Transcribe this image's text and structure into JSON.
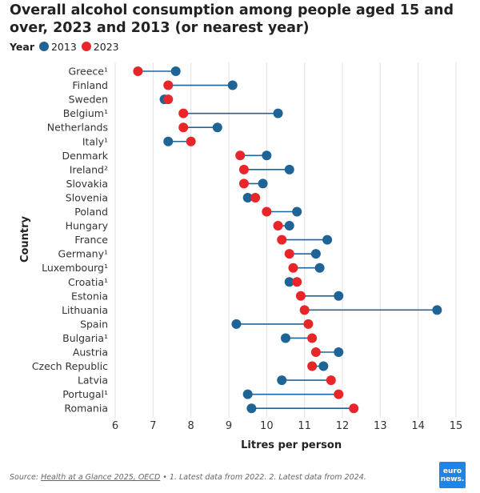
{
  "title": "Overall alcohol consumption among people aged 15 and over, 2023 and 2013 (or nearest year)",
  "legend": {
    "title": "Year",
    "items": [
      {
        "label": "2013",
        "color": "#1f6497"
      },
      {
        "label": "2023",
        "color": "#e8262a"
      }
    ]
  },
  "chart_data": {
    "type": "dumbbell",
    "xlabel": "Litres per person",
    "ylabel": "Country",
    "xlim": [
      6,
      15
    ],
    "xticks": [
      "6",
      "7",
      "8",
      "9",
      "10",
      "11",
      "12",
      "13",
      "14",
      "15"
    ],
    "grid": "vertical",
    "legend_position": "top-left",
    "categories": [
      "Greece¹",
      "Finland",
      "Sweden",
      "Belgium¹",
      "Netherlands",
      "Italy¹",
      "Denmark",
      "Ireland²",
      "Slovakia",
      "Slovenia",
      "Poland",
      "Hungary",
      "France",
      "Germany¹",
      "Luxembourg¹",
      "Croatia¹",
      "Estonia",
      "Lithuania",
      "Spain",
      "Bulgaria¹",
      "Austria",
      "Czech Republic",
      "Latvia",
      "Portugal¹",
      "Romania"
    ],
    "series": [
      {
        "name": "2013",
        "color": "#1f6497",
        "values": [
          7.6,
          9.1,
          7.3,
          10.3,
          8.7,
          7.4,
          10.0,
          10.6,
          9.9,
          9.5,
          10.8,
          10.6,
          11.6,
          11.3,
          11.4,
          10.6,
          11.9,
          14.5,
          9.2,
          10.5,
          11.9,
          11.5,
          10.4,
          9.5,
          9.6
        ]
      },
      {
        "name": "2023",
        "color": "#e8262a",
        "values": [
          6.6,
          7.4,
          7.4,
          7.8,
          7.8,
          8.0,
          9.3,
          9.4,
          9.4,
          9.7,
          10.0,
          10.3,
          10.4,
          10.6,
          10.7,
          10.8,
          10.9,
          11.0,
          11.1,
          11.2,
          11.3,
          11.2,
          11.7,
          11.9,
          12.3
        ]
      }
    ]
  },
  "source": {
    "prefix": "Source: ",
    "link": "Health at a Glance 2025, OECD",
    "notes": " • 1. Latest data from 2022. 2. Latest data from 2024."
  },
  "logo": {
    "line1": "euro",
    "line2": "news."
  }
}
